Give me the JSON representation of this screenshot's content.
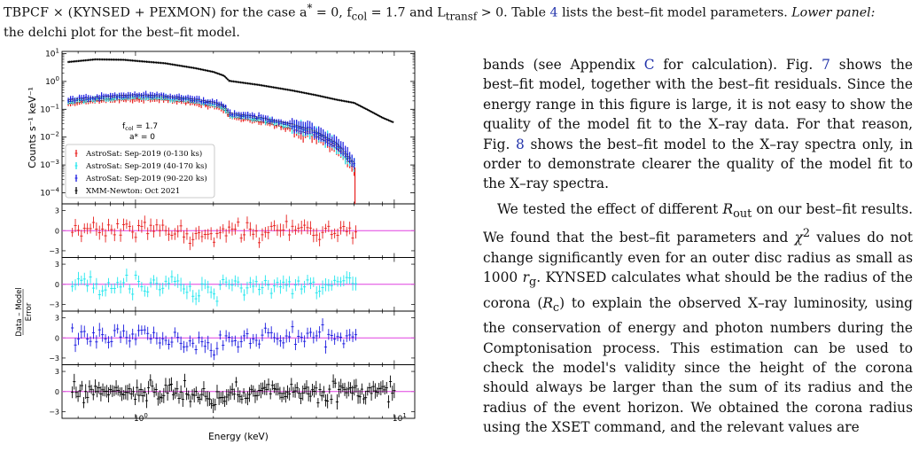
{
  "caption": {
    "line1_model": "TBPCF × (KYNSED + PEXMON)",
    "line1_rest_a": " for the case a",
    "line1_rest_b": " = 0, f",
    "line1_rest_c": " = 1.7 and L",
    "line1_rest_d": " > 0. Table ",
    "table_ref": "4",
    "line1_rest_e": " lists the best–fit model parameters. ",
    "lower_panel_label": "Lower panel:",
    "line2_rest": " the delchi plot for the best–fit model.",
    "sub_col": "col",
    "sub_transf": "transf",
    "sup_star": "*"
  },
  "body_text": {
    "p1": [
      {
        "t": "bands (see Appendix "
      },
      {
        "t": "C",
        "link": true
      },
      {
        "t": " for calculation). Fig. "
      },
      {
        "t": "7",
        "link": true
      },
      {
        "t": " shows the best–fit model, together with the best–fit residuals. Since the energy range in this figure is large, it is not easy to show the quality of the model fit to the X–ray data. For that reason, Fig. "
      },
      {
        "t": "8",
        "link": true
      },
      {
        "t": " shows the best–fit model to the X–ray spectra only, in order to demonstrate clearer the quality of the model fit to the X–ray spectra."
      }
    ],
    "p2": [
      {
        "t": "We tested the effect of different "
      },
      {
        "t": "R",
        "it": true
      },
      {
        "t": "out",
        "sub": true
      },
      {
        "t": " on our best–fit results. We found that the best–fit parameters and "
      },
      {
        "t": "χ",
        "it": true
      },
      {
        "t": "2",
        "sup": true
      },
      {
        "t": " values do not change significantly even for an outer disc radius as small as 1000 "
      },
      {
        "t": "r",
        "it": true
      },
      {
        "t": "g",
        "sub": true
      },
      {
        "t": ". "
      },
      {
        "t": "KYNSED",
        "sc": true
      },
      {
        "t": " calculates what should be the radius of the corona ("
      },
      {
        "t": "R",
        "it": true
      },
      {
        "t": "c",
        "sub": true
      },
      {
        "t": ") to explain the observed X–ray luminosity, using the conservation of energy and photon numbers during the Comptonisation process. This estimation can be used to check the model's validity since the height of the corona should always be larger than the sum of its radius and the radius of the event horizon. We obtained the corona radius using the "
      },
      {
        "t": "XSET",
        "sc": true
      },
      {
        "t": " command, and the relevant values are"
      }
    ]
  },
  "figure": {
    "top_ylabel": "Counts s⁻¹ keV⁻¹",
    "bottom_ylabel_num": "Data – Model",
    "bottom_ylabel_den": "Error",
    "xlabel": "Energy (keV)",
    "annotation_fcol": "f",
    "annotation_fcol_sub": "col",
    "annotation_fcol_val": " = 1.7",
    "annotation_astar": "a* = 0",
    "top_yticks": [
      {
        "b": "10",
        "e": "1",
        "p": 1
      },
      {
        "b": "10",
        "e": "0",
        "p": 0
      },
      {
        "b": "10",
        "e": "−1",
        "p": -1
      },
      {
        "b": "10",
        "e": "−2",
        "p": -2
      },
      {
        "b": "10",
        "e": "−3",
        "p": -3
      },
      {
        "b": "10",
        "e": "−4",
        "p": -4
      }
    ],
    "resid_ticks": [
      "3",
      "0",
      "−3"
    ],
    "xticks": [
      {
        "b": "10",
        "e": "0",
        "v": 1
      },
      {
        "b": "10",
        "e": "1",
        "v": 10
      }
    ],
    "colors": {
      "red": "#e8201e",
      "cyan": "#1ee6ee",
      "blue": "#1a1ae0",
      "black": "#000000",
      "zero_line": "#e040e0"
    },
    "legend": [
      {
        "label": "AstroSat: Sep-2019 (0-130 ks)",
        "color": "#e8201e"
      },
      {
        "label": "AstroSat: Sep-2019 (40-170 ks)",
        "color": "#1ee6ee"
      },
      {
        "label": "AstroSat: Sep-2019 (90-220 ks)",
        "color": "#1a1ae0"
      },
      {
        "label": "XMM-Newton: Oct 2021",
        "color": "#000000"
      }
    ]
  },
  "chart_data": {
    "type": "scatter",
    "xlabel": "Energy (keV)",
    "ylabel": "Counts s⁻¹ keV⁻¹",
    "xscale": "log",
    "yscale": "log",
    "xlim": [
      0.52,
      12
    ],
    "ylim": [
      4e-05,
      12
    ],
    "legend_position": "lower-left",
    "series": [
      {
        "name": "XMM-Newton: Oct 2021",
        "color": "#000000",
        "x": [
          0.55,
          0.7,
          0.9,
          1.0,
          1.3,
          1.7,
          2.0,
          2.2,
          2.3,
          3.0,
          4.0,
          5.0,
          6.0,
          7.0,
          8.0,
          9.0,
          10.0
        ],
        "y": [
          5.0,
          6.2,
          6.0,
          5.5,
          4.5,
          3.0,
          2.2,
          1.6,
          1.05,
          0.75,
          0.48,
          0.32,
          0.22,
          0.17,
          0.09,
          0.05,
          0.033
        ]
      },
      {
        "name": "AstroSat: Sep-2019 (0-130 ks)",
        "color": "#e8201e",
        "x": [
          0.55,
          0.7,
          0.9,
          1.0,
          1.3,
          1.7,
          2.0,
          2.2,
          2.3,
          3.0,
          4.0,
          5.0,
          6.0,
          7.0
        ],
        "y": [
          0.16,
          0.2,
          0.23,
          0.24,
          0.22,
          0.17,
          0.13,
          0.1,
          0.055,
          0.037,
          0.02,
          0.011,
          0.004,
          0.0008
        ]
      },
      {
        "name": "AstroSat: Sep-2019 (40-170 ks)",
        "color": "#1ee6ee",
        "x": [
          0.55,
          0.7,
          0.9,
          1.0,
          1.3,
          1.7,
          2.0,
          2.2,
          2.3,
          3.0,
          4.0,
          5.0,
          6.0,
          7.0
        ],
        "y": [
          0.19,
          0.23,
          0.27,
          0.28,
          0.26,
          0.2,
          0.16,
          0.12,
          0.065,
          0.045,
          0.025,
          0.014,
          0.005,
          0.001
        ]
      },
      {
        "name": "AstroSat: Sep-2019 (90-220 ks)",
        "color": "#1a1ae0",
        "x": [
          0.55,
          0.7,
          0.9,
          1.0,
          1.3,
          1.7,
          2.0,
          2.2,
          2.3,
          3.0,
          4.0,
          5.0,
          6.0,
          7.0
        ],
        "y": [
          0.22,
          0.27,
          0.32,
          0.33,
          0.3,
          0.23,
          0.18,
          0.14,
          0.075,
          0.052,
          0.03,
          0.016,
          0.006,
          0.0012
        ]
      }
    ],
    "residual_panels": [
      {
        "name": "AstroSat: Sep-2019 (0-130 ks)",
        "color": "#e8201e",
        "ylim": [
          -4,
          4
        ]
      },
      {
        "name": "AstroSat: Sep-2019 (40-170 ks)",
        "color": "#1ee6ee",
        "ylim": [
          -4,
          4
        ]
      },
      {
        "name": "AstroSat: Sep-2019 (90-220 ks)",
        "color": "#1a1ae0",
        "ylim": [
          -4,
          4
        ]
      },
      {
        "name": "XMM-Newton: Oct 2021",
        "color": "#000000",
        "ylim": [
          -4,
          4
        ]
      }
    ]
  }
}
